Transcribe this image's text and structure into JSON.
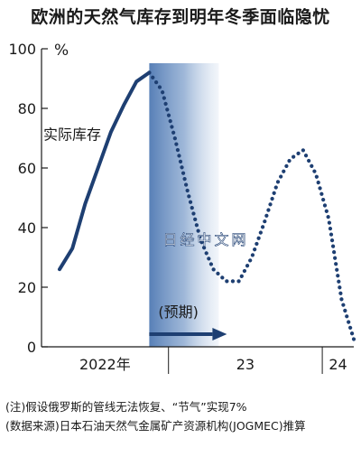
{
  "title": "欧洲的天然气库存到明年冬季面临隐忧",
  "chart_data": {
    "type": "line",
    "unit": "%",
    "ylim": [
      0,
      100
    ],
    "yticks": [
      0,
      20,
      40,
      60,
      80,
      100
    ],
    "x_groups": [
      {
        "label": "2022年",
        "start": "2022-04",
        "end": "2022-12"
      },
      {
        "label": "23",
        "start": "2023-01",
        "end": "2023-12"
      },
      {
        "label": "24",
        "start": "2024-01",
        "end": "2024-03"
      }
    ],
    "series": [
      {
        "name": "实际库存",
        "style": "solid",
        "x": [
          "2022-04",
          "2022-05",
          "2022-06",
          "2022-07",
          "2022-08",
          "2022-09",
          "2022-10",
          "2022-11"
        ],
        "y": [
          26,
          33,
          48,
          60,
          72,
          81,
          89,
          92
        ]
      },
      {
        "name": "预期",
        "style": "dotted",
        "x": [
          "2022-11",
          "2022-12",
          "2023-01",
          "2023-02",
          "2023-03",
          "2023-04",
          "2023-05",
          "2023-06",
          "2023-07",
          "2023-08",
          "2023-09",
          "2023-10",
          "2023-11",
          "2023-12",
          "2024-01",
          "2024-02",
          "2024-03"
        ],
        "y": [
          92,
          86,
          70,
          52,
          36,
          26,
          22,
          22,
          30,
          42,
          55,
          63,
          66,
          58,
          43,
          16,
          2
        ]
      }
    ],
    "forecast_label": "(预期)",
    "annotation_actual": "实际库存",
    "shade_start": "2022-11",
    "shade_end": "2023-04",
    "colors": {
      "line": "#1e3f72",
      "shade": "#4f79b3"
    }
  },
  "watermark": "日经中文网",
  "notes": [
    "(注)假设俄罗斯的管线无法恢复、“节气”实现7%",
    "(数据来源)日本石油天然气金属矿产资源机构(JOGMEC)推算"
  ]
}
